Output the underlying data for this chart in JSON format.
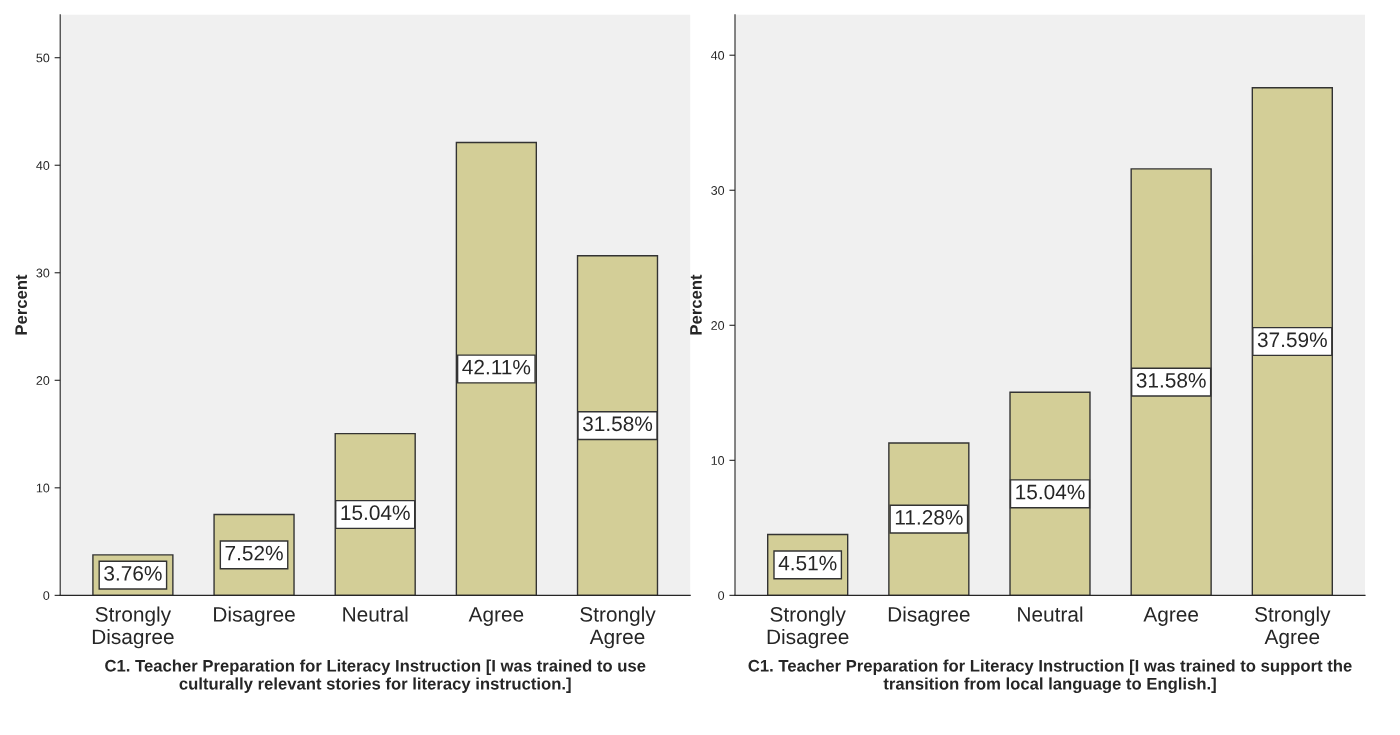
{
  "chart_data": [
    {
      "type": "bar",
      "categories": [
        "Strongly\nDisagree",
        "Disagree",
        "Neutral",
        "Agree",
        "Strongly\nAgree"
      ],
      "values": [
        3.76,
        7.52,
        15.04,
        42.11,
        31.58
      ],
      "value_labels": [
        "3.76%",
        "7.52%",
        "15.04%",
        "42.11%",
        "31.58%"
      ],
      "color": "#d3ce97",
      "ylabel": "Percent",
      "xlabel": "C1. Teacher Preparation for Literacy Instruction [I was trained to use\nculturally relevant stories for literacy instruction.]",
      "ylim": [
        0,
        54
      ],
      "yticks": [
        0,
        10,
        20,
        30,
        40,
        50
      ],
      "grid": false,
      "legend": false
    },
    {
      "type": "bar",
      "categories": [
        "Strongly\nDisagree",
        "Disagree",
        "Neutral",
        "Agree",
        "Strongly\nAgree"
      ],
      "values": [
        4.51,
        11.28,
        15.04,
        31.58,
        37.59
      ],
      "value_labels": [
        "4.51%",
        "11.28%",
        "15.04%",
        "31.58%",
        "37.59%"
      ],
      "color": "#d3ce97",
      "ylabel": "Percent",
      "xlabel": "C1. Teacher Preparation for Literacy Instruction [I was trained to support the\ntransition from local language to English.]",
      "ylim": [
        0,
        43
      ],
      "yticks": [
        0,
        10,
        20,
        30,
        40
      ],
      "grid": false,
      "legend": false
    }
  ]
}
